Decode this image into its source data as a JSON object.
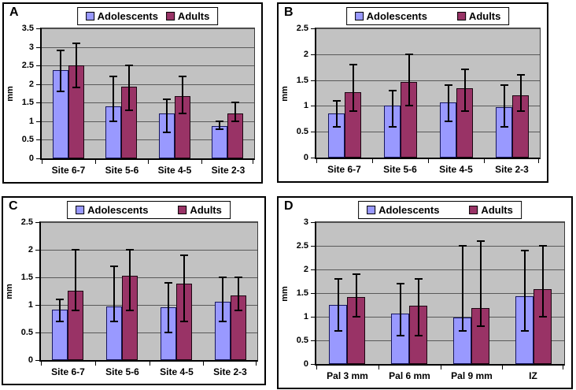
{
  "colors": {
    "plot_background": "#c2c2c2",
    "gridline": "#595959",
    "axis": "#000000",
    "error_bar": "#000000",
    "panel_border": "#000000",
    "legend_border": "#000000",
    "text": "#000000"
  },
  "series_style": [
    {
      "name": "Adolescents",
      "fill": "#9999ff",
      "border": "#15155e"
    },
    {
      "name": "Adults",
      "fill": "#993366",
      "border": "#1a0510"
    }
  ],
  "chart_data": [
    {
      "type": "bar",
      "panel_label": "A",
      "ylabel": "mm",
      "xlabel": "",
      "ylim": [
        0,
        3.5
      ],
      "ytick_step": 0.5,
      "grid": true,
      "legend_position": "top",
      "legend_style": "compact",
      "categories": [
        "Site 6-7",
        "Site 5-6",
        "Site 4-5",
        "Site 2-3"
      ],
      "series": [
        {
          "name": "Adolescents",
          "values": [
            2.38,
            1.4,
            1.2,
            0.87
          ],
          "err_lo": [
            1.8,
            1.0,
            0.7,
            0.78
          ],
          "err_hi": [
            2.9,
            2.2,
            1.6,
            1.0
          ]
        },
        {
          "name": "Adults",
          "values": [
            2.5,
            1.92,
            1.68,
            1.21
          ],
          "err_lo": [
            1.9,
            1.3,
            1.2,
            1.0
          ],
          "err_hi": [
            3.1,
            2.5,
            2.2,
            1.5
          ]
        }
      ]
    },
    {
      "type": "bar",
      "panel_label": "B",
      "ylabel": "mm",
      "xlabel": "",
      "ylim": [
        0,
        2.5
      ],
      "ytick_step": 0.5,
      "grid": true,
      "legend_position": "top",
      "legend_style": "wide",
      "categories": [
        "Site 6-7",
        "Site 5-6",
        "Site 4-5",
        "Site 2-3"
      ],
      "series": [
        {
          "name": "Adolescents",
          "values": [
            0.85,
            1.01,
            1.07,
            0.97
          ],
          "err_lo": [
            0.6,
            0.6,
            0.7,
            0.6
          ],
          "err_hi": [
            1.1,
            1.3,
            1.4,
            1.4
          ]
        },
        {
          "name": "Adults",
          "values": [
            1.27,
            1.46,
            1.34,
            1.21
          ],
          "err_lo": [
            0.9,
            1.0,
            0.9,
            0.9
          ],
          "err_hi": [
            1.8,
            2.0,
            1.7,
            1.6
          ]
        }
      ]
    },
    {
      "type": "bar",
      "panel_label": "C",
      "ylabel": "mm",
      "xlabel": "",
      "ylim": [
        0,
        2.5
      ],
      "ytick_step": 0.5,
      "grid": true,
      "legend_position": "top",
      "legend_style": "wide",
      "categories": [
        "Site 6-7",
        "Site 5-6",
        "Site 4-5",
        "Site 2-3"
      ],
      "series": [
        {
          "name": "Adolescents",
          "values": [
            0.91,
            0.97,
            0.96,
            1.05
          ],
          "err_lo": [
            0.7,
            0.7,
            0.5,
            0.7
          ],
          "err_hi": [
            1.1,
            1.7,
            1.4,
            1.5
          ]
        },
        {
          "name": "Adults",
          "values": [
            1.26,
            1.53,
            1.38,
            1.17
          ],
          "err_lo": [
            0.9,
            0.9,
            0.7,
            0.9
          ],
          "err_hi": [
            2.0,
            2.0,
            1.9,
            1.5
          ]
        }
      ]
    },
    {
      "type": "bar",
      "panel_label": "D",
      "ylabel": "mm",
      "xlabel": "",
      "ylim": [
        0,
        3
      ],
      "ytick_step": 0.5,
      "grid": true,
      "legend_position": "top",
      "legend_style": "wide",
      "categories": [
        "Pal 3 mm",
        "Pal 6 mm",
        "Pal 9 mm",
        "IZ"
      ],
      "series": [
        {
          "name": "Adolescents",
          "values": [
            1.25,
            1.06,
            0.98,
            1.44
          ],
          "err_lo": [
            0.7,
            0.6,
            0.7,
            0.7
          ],
          "err_hi": [
            1.8,
            1.7,
            2.5,
            2.4
          ]
        },
        {
          "name": "Adults",
          "values": [
            1.42,
            1.24,
            1.18,
            1.58
          ],
          "err_lo": [
            1.0,
            0.6,
            0.8,
            1.0
          ],
          "err_hi": [
            1.9,
            1.8,
            2.6,
            2.5
          ]
        }
      ]
    }
  ]
}
